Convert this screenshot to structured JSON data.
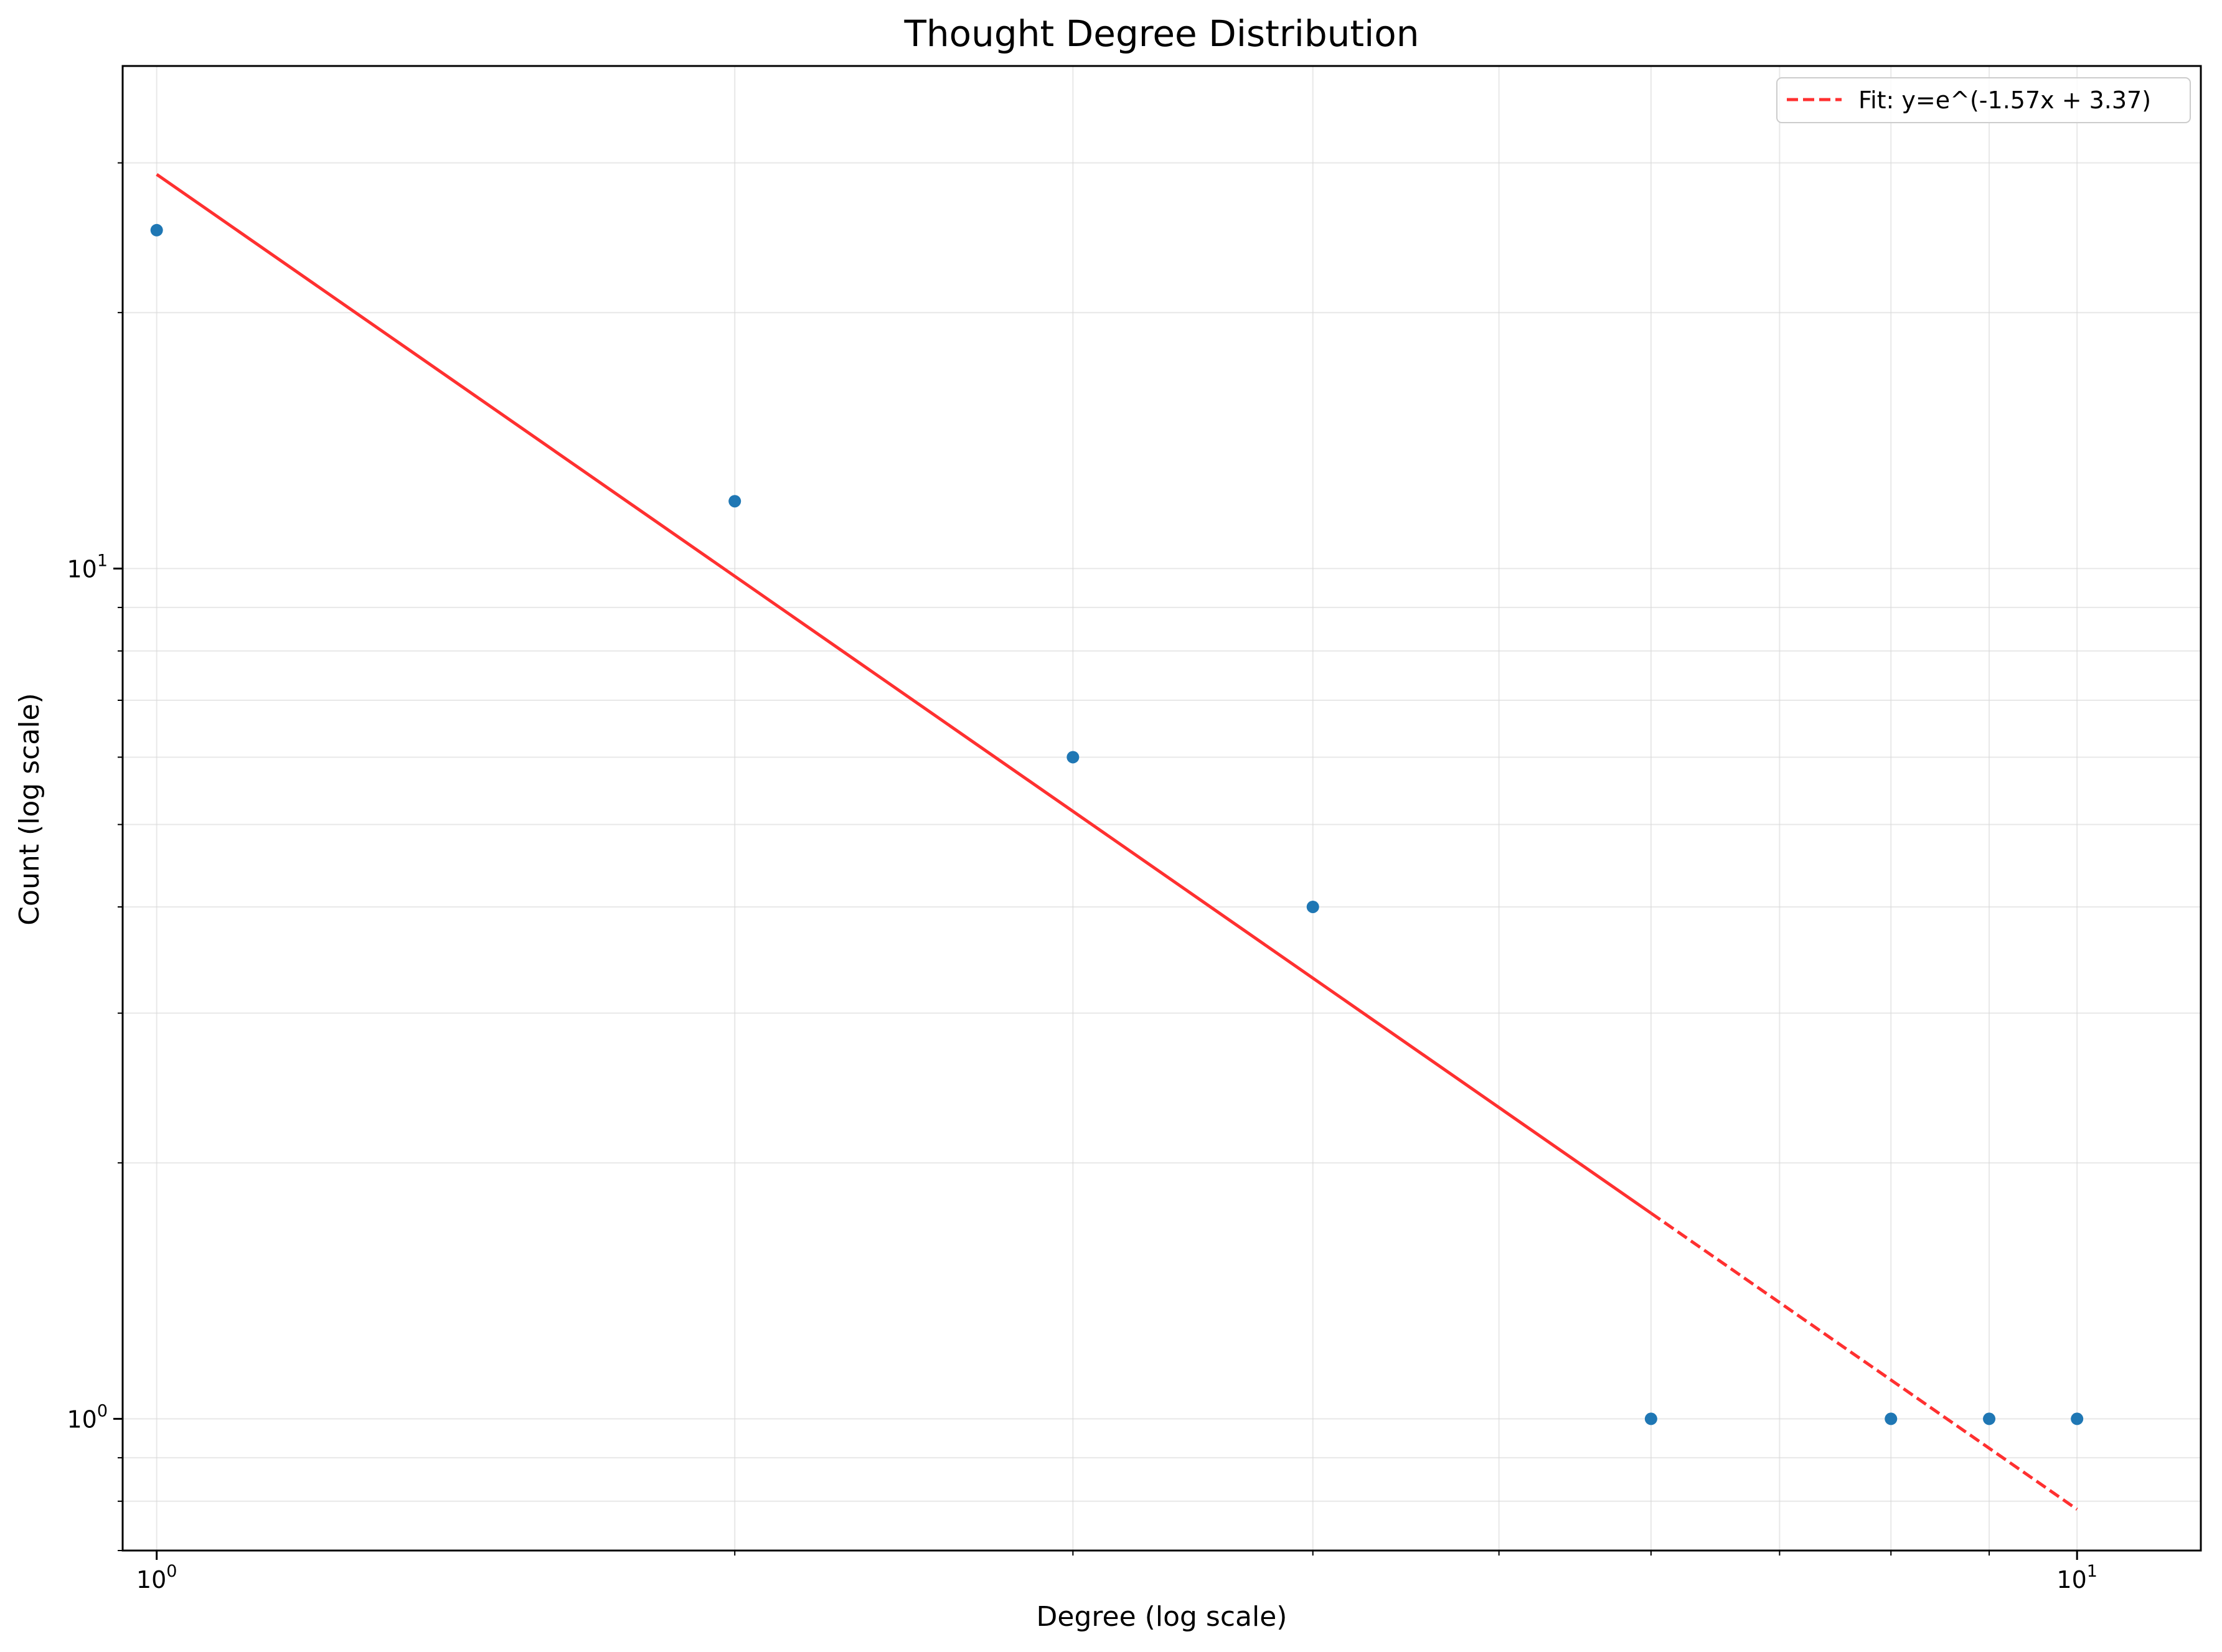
{
  "chart_data": {
    "type": "scatter",
    "title": "Thought Degree Distribution",
    "xlabel": "Degree (log scale)",
    "ylabel": "Count (log scale)",
    "x_scale": "log",
    "y_scale": "log",
    "xlim": [
      0.96,
      11.6
    ],
    "ylim": [
      0.7,
      39
    ],
    "x_ticks": [
      {
        "value": 1,
        "base": "10",
        "exp": "0"
      },
      {
        "value": 10,
        "base": "10",
        "exp": "1"
      }
    ],
    "y_ticks": [
      {
        "value": 1,
        "base": "10",
        "exp": "0"
      },
      {
        "value": 10,
        "base": "10",
        "exp": "1"
      }
    ],
    "grid": true,
    "legend_position": "top-right",
    "series": [
      {
        "kind": "points",
        "color": "#1f77b4",
        "x": [
          1,
          2,
          3,
          4,
          6,
          8,
          9,
          10
        ],
        "y": [
          25,
          12,
          6,
          4,
          1,
          1,
          1,
          1
        ]
      },
      {
        "kind": "fit-line",
        "name": "Fit: y=e^(-1.57x + 3.37)",
        "color": "#ff3030",
        "solid_x": [
          1,
          6
        ],
        "dashed_x": [
          6,
          10
        ],
        "slope": -1.57,
        "intercept": 3.37
      }
    ]
  }
}
